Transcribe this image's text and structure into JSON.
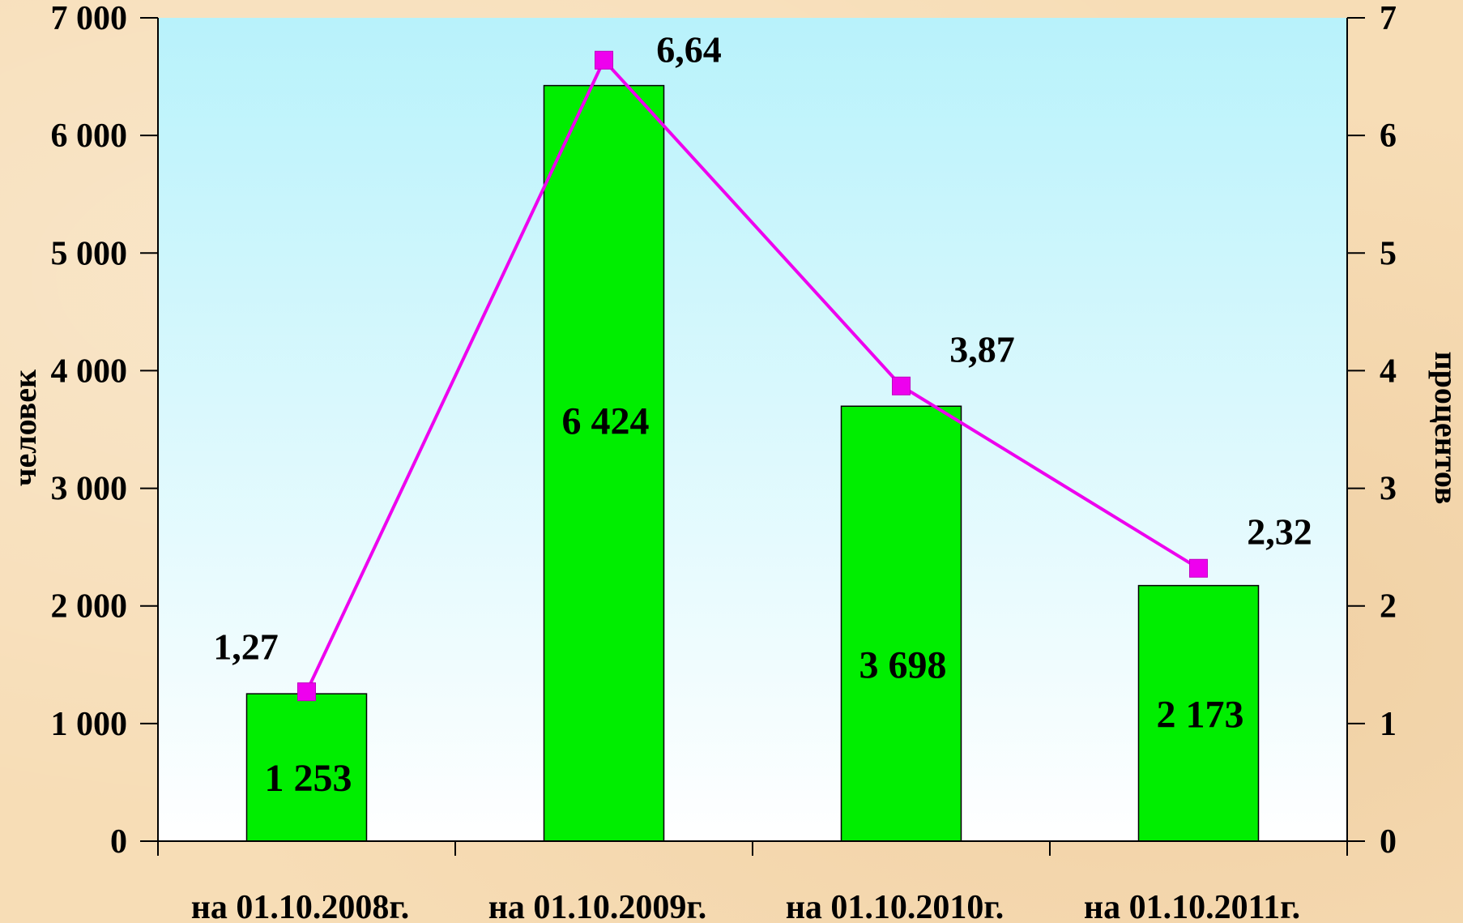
{
  "chart_data": {
    "type": "bar",
    "categories": [
      "на 01.10.2008г.",
      "на 01.10.2009г.",
      "на 01.10.2010г.",
      "на 01.10.2011г."
    ],
    "series": [
      {
        "kind": "bar",
        "axis": "left",
        "values": [
          1253,
          6424,
          3698,
          2173
        ],
        "labels": [
          "1 253",
          "6 424",
          "3 698",
          "2 173"
        ],
        "color": "#00ee00"
      },
      {
        "kind": "line",
        "axis": "right",
        "values": [
          1.27,
          6.64,
          3.87,
          2.32
        ],
        "labels": [
          "1,27",
          "6,64",
          "3,87",
          "2,32"
        ],
        "color": "#ee00ee"
      }
    ],
    "ylabel": "человек",
    "y2label": "процентов",
    "ylim": [
      0,
      7000
    ],
    "y2lim": [
      0,
      7
    ],
    "yticks": [
      "0",
      "1 000",
      "2 000",
      "3 000",
      "4 000",
      "5 000",
      "6 000",
      "7 000"
    ],
    "y2ticks": [
      "0",
      "1",
      "2",
      "3",
      "4",
      "5",
      "6",
      "7"
    ],
    "grid": false,
    "plot_background": [
      "#b8f2fb",
      "#ffffff"
    ]
  }
}
